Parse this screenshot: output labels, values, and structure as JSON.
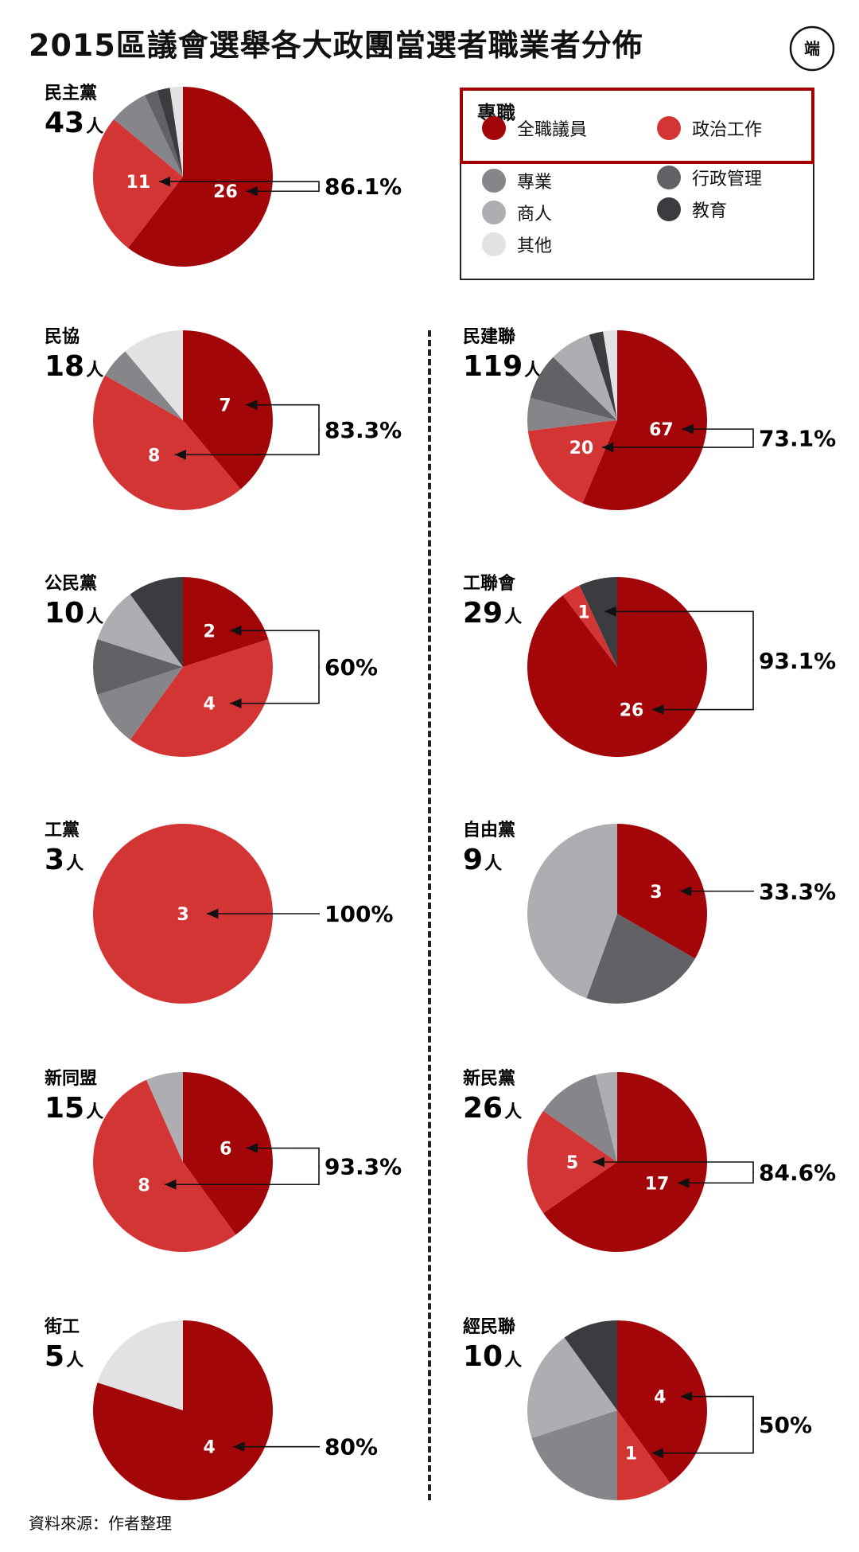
{
  "title": "2015區議會選舉各大政團當選者職業者分佈",
  "logo_text": "端",
  "source": "資料來源：作者整理",
  "legend": {
    "group_title": "專職",
    "items": [
      {
        "key": "full",
        "label": "全職議員",
        "color": "#a30609"
      },
      {
        "key": "political",
        "label": "政治工作",
        "color": "#d33535"
      },
      {
        "key": "professional",
        "label": "專業",
        "color": "#86868a"
      },
      {
        "key": "admin",
        "label": "行政管理",
        "color": "#626266"
      },
      {
        "key": "business",
        "label": "商人",
        "color": "#aeaeb2"
      },
      {
        "key": "education",
        "label": "教育",
        "color": "#3c3c40"
      },
      {
        "key": "other",
        "label": "其他",
        "color": "#e2e2e4"
      }
    ]
  },
  "colors": {
    "full": "#a30609",
    "political": "#d33535",
    "professional": "#86868a",
    "admin": "#626266",
    "business": "#aeaeb2",
    "education": "#3c3c40",
    "other": "#e2e2e4"
  },
  "chart_data": [
    {
      "type": "pie",
      "party": "民主黨",
      "total": "43",
      "unit": "人",
      "percent_label": "86.1%",
      "slices": [
        {
          "cat": "full",
          "value": 26,
          "label": "26"
        },
        {
          "cat": "political",
          "value": 11,
          "label": "11"
        },
        {
          "cat": "professional",
          "value": 3
        },
        {
          "cat": "admin",
          "value": 1
        },
        {
          "cat": "education",
          "value": 1
        },
        {
          "cat": "other",
          "value": 1
        }
      ]
    },
    {
      "type": "pie",
      "party": "民協",
      "total": "18",
      "unit": "人",
      "percent_label": "83.3%",
      "slices": [
        {
          "cat": "full",
          "value": 7,
          "label": "7"
        },
        {
          "cat": "political",
          "value": 8,
          "label": "8"
        },
        {
          "cat": "professional",
          "value": 1
        },
        {
          "cat": "other",
          "value": 2
        }
      ]
    },
    {
      "type": "pie",
      "party": "公民黨",
      "total": "10",
      "unit": "人",
      "percent_label": "60%",
      "slices": [
        {
          "cat": "full",
          "value": 2,
          "label": "2"
        },
        {
          "cat": "political",
          "value": 4,
          "label": "4"
        },
        {
          "cat": "professional",
          "value": 1
        },
        {
          "cat": "admin",
          "value": 1
        },
        {
          "cat": "business",
          "value": 1
        },
        {
          "cat": "education",
          "value": 1
        }
      ]
    },
    {
      "type": "pie",
      "party": "工黨",
      "total": "3",
      "unit": "人",
      "percent_label": "100%",
      "slices": [
        {
          "cat": "political",
          "value": 3,
          "label": "3"
        }
      ]
    },
    {
      "type": "pie",
      "party": "新同盟",
      "total": "15",
      "unit": "人",
      "percent_label": "93.3%",
      "slices": [
        {
          "cat": "full",
          "value": 6,
          "label": "6"
        },
        {
          "cat": "political",
          "value": 8,
          "label": "8"
        },
        {
          "cat": "business",
          "value": 1
        }
      ]
    },
    {
      "type": "pie",
      "party": "街工",
      "total": "5",
      "unit": "人",
      "percent_label": "80%",
      "slices": [
        {
          "cat": "full",
          "value": 4,
          "label": "4"
        },
        {
          "cat": "other",
          "value": 1
        }
      ]
    },
    {
      "type": "pie",
      "party": "民建聯",
      "total": "119",
      "unit": "人",
      "percent_label": "73.1%",
      "slices": [
        {
          "cat": "full",
          "value": 67,
          "label": "67"
        },
        {
          "cat": "political",
          "value": 20,
          "label": "20"
        },
        {
          "cat": "professional",
          "value": 7
        },
        {
          "cat": "admin",
          "value": 10
        },
        {
          "cat": "business",
          "value": 9
        },
        {
          "cat": "education",
          "value": 3
        },
        {
          "cat": "other",
          "value": 3
        }
      ]
    },
    {
      "type": "pie",
      "party": "工聯會",
      "total": "29",
      "unit": "人",
      "percent_label": "93.1%",
      "slices": [
        {
          "cat": "full",
          "value": 26,
          "label": "26"
        },
        {
          "cat": "political",
          "value": 1,
          "label": "1"
        },
        {
          "cat": "education",
          "value": 2
        }
      ]
    },
    {
      "type": "pie",
      "party": "自由黨",
      "total": "9",
      "unit": "人",
      "percent_label": "33.3%",
      "slices": [
        {
          "cat": "full",
          "value": 3,
          "label": "3"
        },
        {
          "cat": "admin",
          "value": 2
        },
        {
          "cat": "business",
          "value": 4
        }
      ]
    },
    {
      "type": "pie",
      "party": "新民黨",
      "total": "26",
      "unit": "人",
      "percent_label": "84.6%",
      "slices": [
        {
          "cat": "full",
          "value": 17,
          "label": "17"
        },
        {
          "cat": "political",
          "value": 5,
          "label": "5"
        },
        {
          "cat": "professional",
          "value": 3
        },
        {
          "cat": "business",
          "value": 1
        }
      ]
    },
    {
      "type": "pie",
      "party": "經民聯",
      "total": "10",
      "unit": "人",
      "percent_label": "50%",
      "slices": [
        {
          "cat": "full",
          "value": 4,
          "label": "4"
        },
        {
          "cat": "political",
          "value": 1,
          "label": "1"
        },
        {
          "cat": "professional",
          "value": 2
        },
        {
          "cat": "business",
          "value": 2
        },
        {
          "cat": "education",
          "value": 1
        }
      ]
    }
  ]
}
